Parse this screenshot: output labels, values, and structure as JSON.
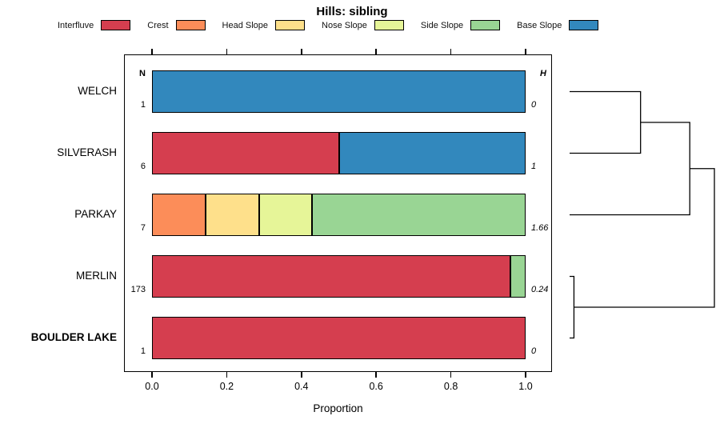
{
  "title": "Hills: sibling",
  "x_axis": {
    "label": "Proportion",
    "ticks": [
      "0.0",
      "0.2",
      "0.4",
      "0.6",
      "0.8",
      "1.0"
    ],
    "tick_values": [
      0,
      0.2,
      0.4,
      0.6,
      0.8,
      1.0
    ]
  },
  "col_headers": {
    "n": "N",
    "h": "H"
  },
  "legend": {
    "position": "top",
    "items": [
      {
        "label": "Interfluve",
        "color": "#D53E4F"
      },
      {
        "label": "Crest",
        "color": "#FC8D59"
      },
      {
        "label": "Head Slope",
        "color": "#FEE08B"
      },
      {
        "label": "Nose Slope",
        "color": "#E6F598"
      },
      {
        "label": "Side Slope",
        "color": "#99D594"
      },
      {
        "label": "Base Slope",
        "color": "#3288BD"
      }
    ]
  },
  "chart_data": {
    "type": "bar",
    "subtype": "horizontal-stacked-proportions-with-dendrogram",
    "title": "Hills: sibling",
    "xlabel": "Proportion",
    "xlim": [
      0,
      1
    ],
    "xticks": [
      0,
      0.2,
      0.4,
      0.6,
      0.8,
      1.0
    ],
    "grid": false,
    "legend_position": "top",
    "categories": [
      "Interfluve",
      "Crest",
      "Head Slope",
      "Nose Slope",
      "Side Slope",
      "Base Slope"
    ],
    "rows": [
      {
        "label": "WELCH",
        "n": "1",
        "h": "0",
        "bold": false,
        "segments": [
          {
            "category": "Base Slope",
            "value": 1.0
          }
        ]
      },
      {
        "label": "SILVERASH",
        "n": "6",
        "h": "1",
        "bold": false,
        "segments": [
          {
            "category": "Interfluve",
            "value": 0.5
          },
          {
            "category": "Base Slope",
            "value": 0.5
          }
        ]
      },
      {
        "label": "PARKAY",
        "n": "7",
        "h": "1.66",
        "bold": false,
        "segments": [
          {
            "category": "Crest",
            "value": 0.143
          },
          {
            "category": "Head Slope",
            "value": 0.143
          },
          {
            "category": "Nose Slope",
            "value": 0.143
          },
          {
            "category": "Side Slope",
            "value": 0.571
          }
        ]
      },
      {
        "label": "MERLIN",
        "n": "173",
        "h": "0.24",
        "bold": false,
        "segments": [
          {
            "category": "Interfluve",
            "value": 0.96
          },
          {
            "category": "Side Slope",
            "value": 0.04
          }
        ]
      },
      {
        "label": "BOULDER LAKE",
        "n": "1",
        "h": "0",
        "bold": true,
        "segments": [
          {
            "category": "Interfluve",
            "value": 1.0
          }
        ]
      }
    ],
    "dendrogram": {
      "orientation": "right",
      "leaves": [
        "WELCH",
        "SILVERASH",
        "PARKAY",
        "MERLIN",
        "BOULDER LAKE"
      ],
      "heights_normalized": true,
      "merges": [
        {
          "a": {
            "leaf": 0
          },
          "b": {
            "leaf": 1
          },
          "height": 0.49
        },
        {
          "a": {
            "node": 0
          },
          "b": {
            "leaf": 2
          },
          "height": 0.83
        },
        {
          "a": {
            "leaf": 3
          },
          "b": {
            "leaf": 4
          },
          "height": 0.03
        },
        {
          "a": {
            "node": 1
          },
          "b": {
            "node": 2
          },
          "height": 1.0
        }
      ]
    }
  }
}
